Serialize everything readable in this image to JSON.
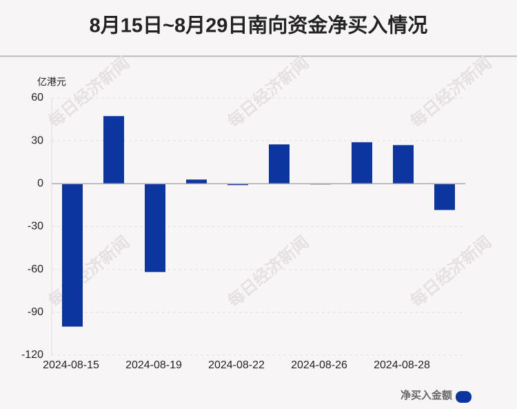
{
  "chart_data": {
    "type": "bar",
    "title": "8月15日~8月29日南向资金净买入情况",
    "y_unit": "亿港元",
    "categories": [
      "2024-08-15",
      null,
      "2024-08-19",
      null,
      "2024-08-22",
      null,
      "2024-08-26",
      null,
      "2024-08-28",
      null
    ],
    "series": [
      {
        "name": "净买入金额",
        "color": "#0d35a0",
        "values": [
          -100,
          47.3,
          -61.8,
          2.9,
          -1,
          27.5,
          -0.5,
          29,
          27,
          -18.4
        ]
      }
    ],
    "ylim": [
      -120,
      60
    ],
    "yticks": [
      -120,
      -90,
      -60,
      -30,
      0,
      30,
      60
    ],
    "grid": true,
    "legend": "bottom-right",
    "watermark": "每日经济新闻"
  }
}
